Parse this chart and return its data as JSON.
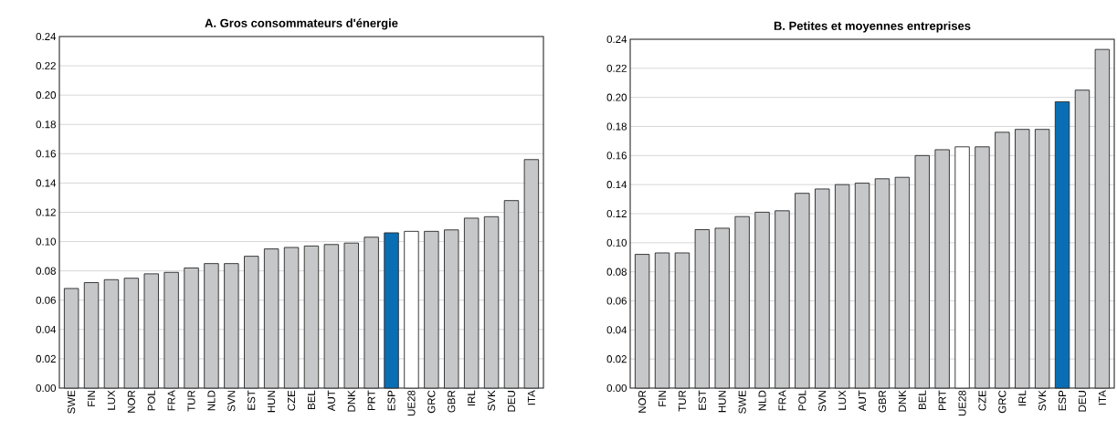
{
  "chart_data": [
    {
      "type": "bar",
      "title": "A. Gros consommateurs d'énergie",
      "categories": [
        "SWE",
        "FIN",
        "LUX",
        "NOR",
        "POL",
        "FRA",
        "TUR",
        "NLD",
        "SVN",
        "EST",
        "HUN",
        "CZE",
        "BEL",
        "AUT",
        "DNK",
        "PRT",
        "ESP",
        "UE28",
        "GRC",
        "GBR",
        "IRL",
        "SVK",
        "DEU",
        "ITA"
      ],
      "values": [
        0.068,
        0.072,
        0.074,
        0.075,
        0.078,
        0.079,
        0.082,
        0.085,
        0.085,
        0.09,
        0.095,
        0.096,
        0.097,
        0.098,
        0.099,
        0.103,
        0.106,
        0.107,
        0.107,
        0.108,
        0.116,
        0.117,
        0.128,
        0.156
      ],
      "colors": [
        "#c6c7c9",
        "#c6c7c9",
        "#c6c7c9",
        "#c6c7c9",
        "#c6c7c9",
        "#c6c7c9",
        "#c6c7c9",
        "#c6c7c9",
        "#c6c7c9",
        "#c6c7c9",
        "#c6c7c9",
        "#c6c7c9",
        "#c6c7c9",
        "#c6c7c9",
        "#c6c7c9",
        "#c6c7c9",
        "#0a6eb4",
        "#ffffff",
        "#c6c7c9",
        "#c6c7c9",
        "#c6c7c9",
        "#c6c7c9",
        "#c6c7c9",
        "#c6c7c9"
      ],
      "ylim": [
        0,
        0.24
      ],
      "yticks": [
        {
          "value": 0,
          "label": "0.00"
        },
        {
          "value": 0.02,
          "label": "0.02"
        },
        {
          "value": 0.04,
          "label": "0.04"
        },
        {
          "value": 0.06,
          "label": "0.06"
        },
        {
          "value": 0.08,
          "label": "0.08"
        },
        {
          "value": 0.1,
          "label": "0.10"
        },
        {
          "value": 0.12,
          "label": "0.12"
        },
        {
          "value": 0.14,
          "label": "0.14"
        },
        {
          "value": 0.16,
          "label": "0.16"
        },
        {
          "value": 0.18,
          "label": "0.18"
        },
        {
          "value": 0.2,
          "label": "0.20"
        },
        {
          "value": 0.22,
          "label": "0.22"
        },
        {
          "value": 0.24,
          "label": "0.24"
        }
      ],
      "grid": "y"
    },
    {
      "type": "bar",
      "title": "B. Petites et moyennes entreprises",
      "categories": [
        "NOR",
        "FIN",
        "TUR",
        "EST",
        "HUN",
        "SWE",
        "NLD",
        "FRA",
        "POL",
        "SVN",
        "LUX",
        "AUT",
        "GBR",
        "DNK",
        "BEL",
        "PRT",
        "UE28",
        "CZE",
        "GRC",
        "IRL",
        "SVK",
        "ESP",
        "DEU",
        "ITA"
      ],
      "values": [
        0.092,
        0.093,
        0.093,
        0.109,
        0.11,
        0.118,
        0.121,
        0.122,
        0.134,
        0.137,
        0.14,
        0.141,
        0.144,
        0.145,
        0.16,
        0.164,
        0.166,
        0.166,
        0.176,
        0.178,
        0.178,
        0.197,
        0.205,
        0.233
      ],
      "colors": [
        "#c6c7c9",
        "#c6c7c9",
        "#c6c7c9",
        "#c6c7c9",
        "#c6c7c9",
        "#c6c7c9",
        "#c6c7c9",
        "#c6c7c9",
        "#c6c7c9",
        "#c6c7c9",
        "#c6c7c9",
        "#c6c7c9",
        "#c6c7c9",
        "#c6c7c9",
        "#c6c7c9",
        "#c6c7c9",
        "#ffffff",
        "#c6c7c9",
        "#c6c7c9",
        "#c6c7c9",
        "#c6c7c9",
        "#0a6eb4",
        "#c6c7c9",
        "#c6c7c9"
      ],
      "ylim": [
        0,
        0.24
      ],
      "yticks": [
        {
          "value": 0,
          "label": "0.00"
        },
        {
          "value": 0.02,
          "label": "0.02"
        },
        {
          "value": 0.04,
          "label": "0.04"
        },
        {
          "value": 0.06,
          "label": "0.06"
        },
        {
          "value": 0.08,
          "label": "0.08"
        },
        {
          "value": 0.1,
          "label": "0.10"
        },
        {
          "value": 0.12,
          "label": "0.12"
        },
        {
          "value": 0.14,
          "label": "0.14"
        },
        {
          "value": 0.16,
          "label": "0.16"
        },
        {
          "value": 0.18,
          "label": "0.18"
        },
        {
          "value": 0.2,
          "label": "0.20"
        },
        {
          "value": 0.22,
          "label": "0.22"
        },
        {
          "value": 0.24,
          "label": "0.24"
        }
      ],
      "grid": "y"
    }
  ]
}
